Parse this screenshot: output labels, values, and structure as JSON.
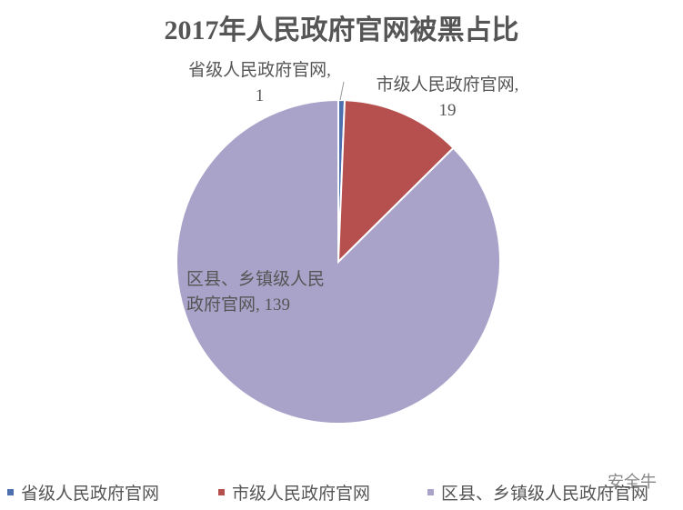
{
  "chart_data": {
    "type": "pie",
    "title": "2017年人民政府官网被黑占比",
    "categories": [
      "省级人民政府官网",
      "市级人民政府官网",
      "区县、乡镇级人民政府官网"
    ],
    "values": [
      1,
      19,
      139
    ],
    "colors": [
      "#4e6fae",
      "#b5504f",
      "#a9a3c9"
    ],
    "data_label_separator": ", ",
    "legend": "bottom",
    "watermark": "安全牛"
  }
}
